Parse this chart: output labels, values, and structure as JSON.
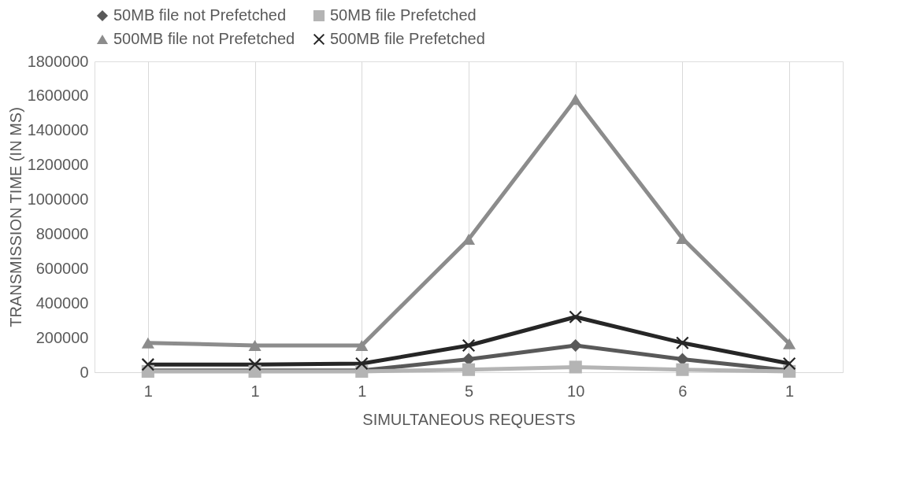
{
  "chart_data": {
    "type": "line",
    "xlabel": "SIMULTANEOUS REQUESTS",
    "ylabel": "TRANSMISSION TIME (IN MS)",
    "categories": [
      "1",
      "1",
      "1",
      "5",
      "10",
      "6",
      "1"
    ],
    "ylim": [
      0,
      1800000
    ],
    "yticks": [
      0,
      200000,
      400000,
      600000,
      800000,
      1000000,
      1200000,
      1400000,
      1600000,
      1800000
    ],
    "grid": "x",
    "legend": "top",
    "series": [
      {
        "name": "50MB file not Prefetched",
        "color": "#595959",
        "marker": "diamond",
        "values": [
          10000,
          10000,
          10000,
          75000,
          155000,
          75000,
          10000
        ]
      },
      {
        "name": "50MB file Prefetched",
        "color": "#b4b4b4",
        "marker": "square",
        "values": [
          5000,
          5000,
          5000,
          15000,
          30000,
          15000,
          5000
        ]
      },
      {
        "name": "500MB file not Prefetched",
        "color": "#8c8c8c",
        "marker": "triangle",
        "values": [
          170000,
          155000,
          155000,
          770000,
          1580000,
          775000,
          165000
        ]
      },
      {
        "name": "500MB file Prefetched",
        "color": "#262626",
        "marker": "cross",
        "values": [
          45000,
          45000,
          50000,
          155000,
          320000,
          170000,
          50000
        ]
      }
    ]
  }
}
